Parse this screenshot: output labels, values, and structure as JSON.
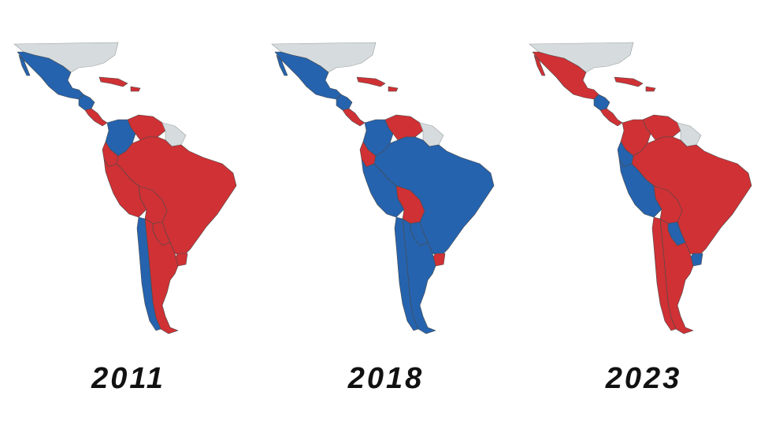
{
  "colors": {
    "left": "#2563ae",
    "right": "#cf3135",
    "none": "#d6dbdd"
  },
  "maps": [
    {
      "year": "2011",
      "regions": {
        "mexico": "left",
        "central_north": "left",
        "central_south": "right",
        "caribbean": "right",
        "colombia": "left",
        "venezuela": "right",
        "ecuador": "right",
        "peru": "right",
        "brazil": "right",
        "bolivia": "right",
        "paraguay": "right",
        "uruguay": "right",
        "chile": "left",
        "argentina": "right"
      }
    },
    {
      "year": "2018",
      "regions": {
        "mexico": "left",
        "central_north": "left",
        "central_south": "right",
        "caribbean": "right",
        "colombia": "left",
        "venezuela": "right",
        "ecuador": "right",
        "peru": "left",
        "brazil": "left",
        "bolivia": "right",
        "paraguay": "left",
        "uruguay": "right",
        "chile": "left",
        "argentina": "left"
      }
    },
    {
      "year": "2023",
      "regions": {
        "mexico": "right",
        "central_north": "left",
        "central_south": "right",
        "caribbean": "right",
        "colombia": "right",
        "venezuela": "right",
        "ecuador": "left",
        "peru": "left",
        "brazil": "right",
        "bolivia": "right",
        "paraguay": "left",
        "uruguay": "left",
        "chile": "right",
        "argentina": "right"
      }
    }
  ]
}
